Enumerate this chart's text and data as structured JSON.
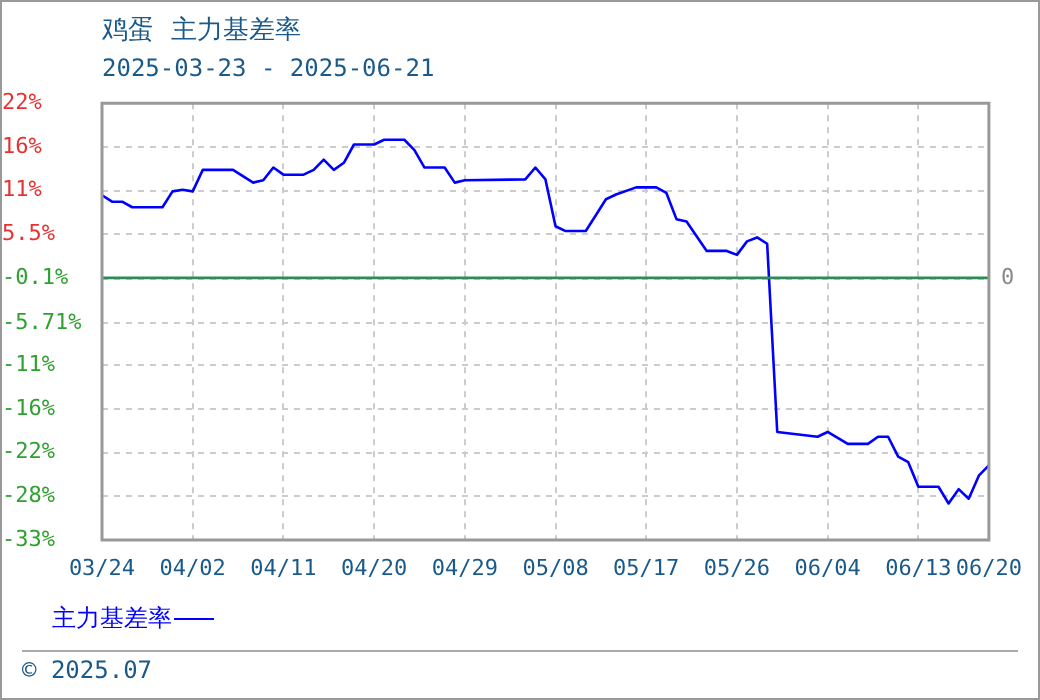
{
  "chart_data": {
    "type": "line",
    "title": "鸡蛋  主力基差率",
    "subtitle": "2025-03-23 - 2025-06-21",
    "x": [
      "2025-03-24",
      "2025-03-25",
      "2025-03-26",
      "2025-03-27",
      "2025-03-30",
      "2025-03-31",
      "2025-04-01",
      "2025-04-02",
      "2025-04-03",
      "2025-04-06",
      "2025-04-08",
      "2025-04-09",
      "2025-04-10",
      "2025-04-11",
      "2025-04-13",
      "2025-04-14",
      "2025-04-15",
      "2025-04-16",
      "2025-04-17",
      "2025-04-18",
      "2025-04-20",
      "2025-04-21",
      "2025-04-23",
      "2025-04-24",
      "2025-04-25",
      "2025-04-27",
      "2025-04-28",
      "2025-04-29",
      "2025-05-05",
      "2025-05-06",
      "2025-05-07",
      "2025-05-08",
      "2025-05-09",
      "2025-05-11",
      "2025-05-12",
      "2025-05-13",
      "2025-05-14",
      "2025-05-16",
      "2025-05-18",
      "2025-05-19",
      "2025-05-20",
      "2025-05-21",
      "2025-05-23",
      "2025-05-25",
      "2025-05-26",
      "2025-05-27",
      "2025-05-28",
      "2025-05-29",
      "2025-05-30",
      "2025-06-03",
      "2025-06-04",
      "2025-06-06",
      "2025-06-08",
      "2025-06-09",
      "2025-06-10",
      "2025-06-11",
      "2025-06-12",
      "2025-06-13",
      "2025-06-15",
      "2025-06-16",
      "2025-06-17",
      "2025-06-18",
      "2025-06-19",
      "2025-06-20"
    ],
    "series": [
      {
        "name": "主力基差率",
        "color": "#0000ff",
        "values": [
          10.4,
          9.6,
          9.6,
          8.9,
          8.9,
          10.9,
          11.1,
          10.9,
          13.6,
          13.6,
          12.0,
          12.3,
          13.9,
          13.0,
          13.0,
          13.6,
          14.9,
          13.6,
          14.5,
          16.8,
          16.8,
          17.4,
          17.4,
          16.1,
          13.9,
          13.9,
          12.0,
          12.3,
          12.4,
          13.9,
          12.4,
          6.5,
          5.9,
          5.9,
          7.9,
          9.9,
          10.5,
          11.4,
          11.4,
          10.7,
          7.4,
          7.1,
          3.4,
          3.4,
          2.9,
          4.6,
          5.1,
          4.3,
          -19.4,
          -20.0,
          -19.4,
          -20.9,
          -20.9,
          -20.0,
          -20.0,
          -22.5,
          -23.2,
          -26.3,
          -26.3,
          -28.4,
          -26.6,
          -27.8,
          -24.9,
          -23.6
        ]
      }
    ],
    "xlim": [
      "2025-03-24",
      "2025-06-20"
    ],
    "xticks": [
      {
        "value": "2025-03-24",
        "label": "03/24"
      },
      {
        "value": "2025-04-02",
        "label": "04/02"
      },
      {
        "value": "2025-04-11",
        "label": "04/11"
      },
      {
        "value": "2025-04-20",
        "label": "04/20"
      },
      {
        "value": "2025-04-29",
        "label": "04/29"
      },
      {
        "value": "2025-05-08",
        "label": "05/08"
      },
      {
        "value": "2025-05-17",
        "label": "05/17"
      },
      {
        "value": "2025-05-26",
        "label": "05/26"
      },
      {
        "value": "2025-06-04",
        "label": "06/04"
      },
      {
        "value": "2025-06-13",
        "label": "06/13"
      },
      {
        "value": "2025-06-20",
        "label": "06/20"
      }
    ],
    "ylim": [
      -33,
      22
    ],
    "yticks": [
      {
        "value": 22,
        "label": "22%"
      },
      {
        "value": 16.5,
        "label": "16%"
      },
      {
        "value": 11,
        "label": "11%"
      },
      {
        "value": 5.5,
        "label": "5.5%"
      },
      {
        "value": -0.1,
        "label": "-0.1%"
      },
      {
        "value": -5.71,
        "label": "-5.71%"
      },
      {
        "value": -11,
        "label": "-11%"
      },
      {
        "value": -16.5,
        "label": "-16%"
      },
      {
        "value": -22,
        "label": "-22%"
      },
      {
        "value": -27.5,
        "label": "-28%"
      },
      {
        "value": -33,
        "label": "-33%"
      }
    ],
    "ref_lines": [
      {
        "axis": "y",
        "value": 0,
        "label": "0",
        "color": "#2e8b57"
      }
    ],
    "grid": true,
    "legend": "bottom",
    "marker": "none",
    "line_style": "solid",
    "annotations": [
      "© 2025.07"
    ]
  }
}
